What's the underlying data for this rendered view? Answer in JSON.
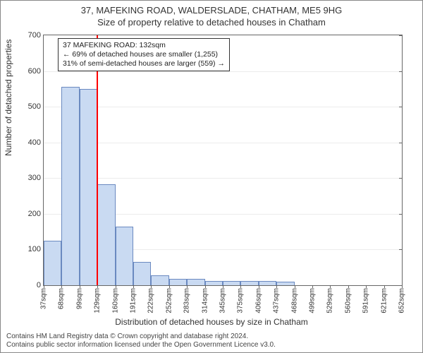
{
  "header": {
    "title": "37, MAFEKING ROAD, WALDERSLADE, CHATHAM, ME5 9HG",
    "subtitle": "Size of property relative to detached houses in Chatham"
  },
  "chart": {
    "type": "histogram",
    "xlabel": "Distribution of detached houses by size in Chatham",
    "ylabel": "Number of detached properties",
    "ylim": [
      0,
      700
    ],
    "ytick_step": 100,
    "x_categories": [
      "37sqm",
      "68sqm",
      "99sqm",
      "129sqm",
      "160sqm",
      "191sqm",
      "222sqm",
      "252sqm",
      "283sqm",
      "314sqm",
      "345sqm",
      "375sqm",
      "406sqm",
      "437sqm",
      "468sqm",
      "499sqm",
      "529sqm",
      "560sqm",
      "591sqm",
      "621sqm",
      "652sqm"
    ],
    "values": [
      125,
      555,
      550,
      282,
      165,
      65,
      28,
      18,
      18,
      12,
      12,
      12,
      12,
      9,
      0,
      0,
      0,
      0,
      0,
      0
    ],
    "bar_fill": "#c9daf2",
    "bar_stroke": "#6a89c0",
    "bar_stroke_width": 1,
    "background_color": "#ffffff",
    "grid_color": "#666666",
    "axis_color": "#666666",
    "marker": {
      "bin_index": 3,
      "color": "#ff0000",
      "width": 2
    },
    "label_fontsize": 12,
    "tick_fontsize": 11
  },
  "annotation": {
    "line1": "37 MAFEKING ROAD: 132sqm",
    "line2": "← 69% of detached houses are smaller (1,255)",
    "line3": "31% of semi-detached houses are larger (559) →"
  },
  "footer": {
    "line1": "Contains HM Land Registry data © Crown copyright and database right 2024.",
    "line2": "Contains public sector information licensed under the Open Government Licence v3.0."
  }
}
